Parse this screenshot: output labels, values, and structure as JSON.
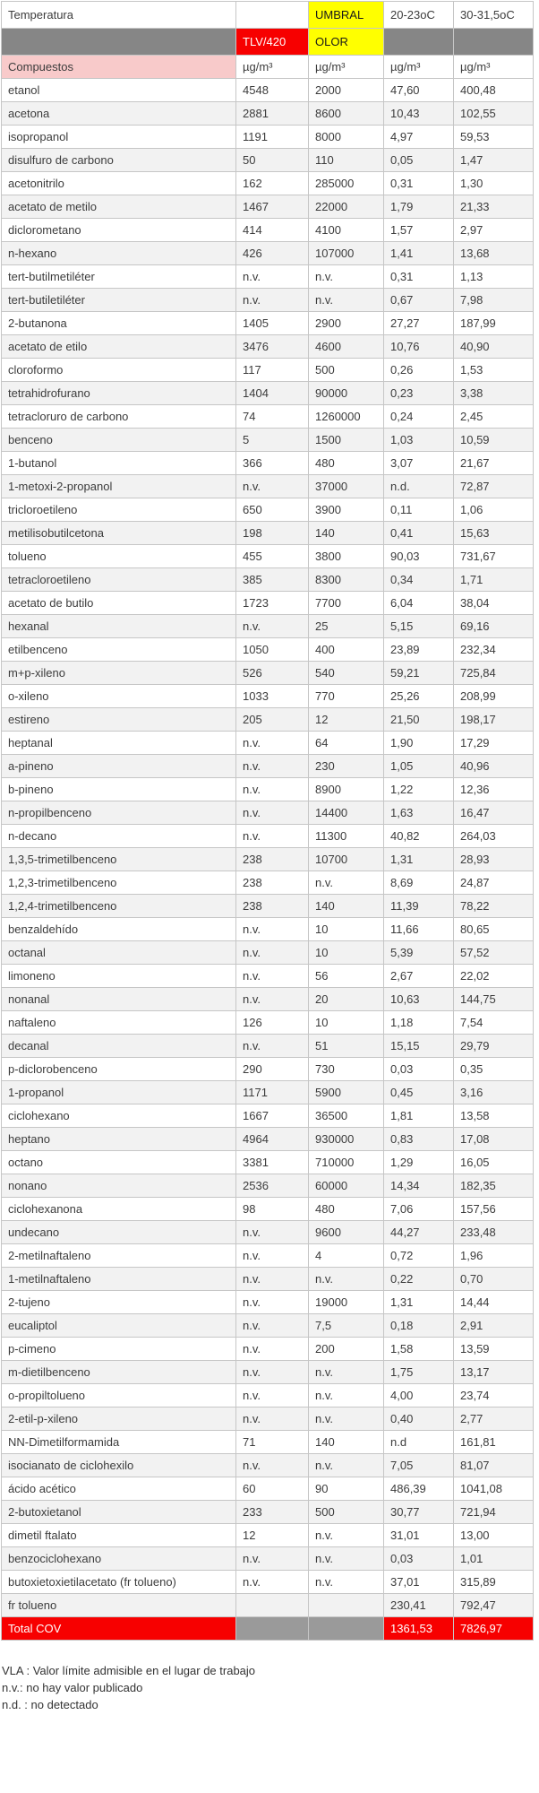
{
  "header": {
    "temperatura": "Temperatura",
    "umbral": "UMBRAL",
    "tlv": "TLV/420",
    "olor": "OLOR",
    "temp_range_low": "20-23oC",
    "temp_range_high": "30-31,5oC",
    "compuestos": "Compuestos",
    "unit": "µg/m³"
  },
  "columns": [
    "compuesto",
    "TLV/420 µg/m³",
    "UMBRAL OLOR µg/m³",
    "20-23oC µg/m³",
    "30-31,5oC µg/m³"
  ],
  "rows": [
    [
      "etanol",
      "4548",
      "2000",
      "47,60",
      "400,48"
    ],
    [
      "acetona",
      "2881",
      "8600",
      "10,43",
      "102,55"
    ],
    [
      "isopropanol",
      "1191",
      "8000",
      "4,97",
      "59,53"
    ],
    [
      "disulfuro de carbono",
      "50",
      "110",
      "0,05",
      "1,47"
    ],
    [
      "acetonitrilo",
      "162",
      "285000",
      "0,31",
      "1,30"
    ],
    [
      "acetato de metilo",
      "1467",
      "22000",
      "1,79",
      "21,33"
    ],
    [
      "diclorometano",
      "414",
      "4100",
      "1,57",
      "2,97"
    ],
    [
      "n-hexano",
      "426",
      "107000",
      "1,41",
      "13,68"
    ],
    [
      "tert-butilmetiléter",
      "n.v.",
      "n.v.",
      "0,31",
      "1,13"
    ],
    [
      "tert-butiletiléter",
      "n.v.",
      "n.v.",
      "0,67",
      "7,98"
    ],
    [
      "2-butanona",
      "1405",
      "2900",
      "27,27",
      "187,99"
    ],
    [
      "acetato de etilo",
      "3476",
      "4600",
      "10,76",
      "40,90"
    ],
    [
      "cloroformo",
      "117",
      "500",
      "0,26",
      "1,53"
    ],
    [
      "tetrahidrofurano",
      "1404",
      "90000",
      "0,23",
      "3,38"
    ],
    [
      "tetracloruro de carbono",
      "74",
      "1260000",
      "0,24",
      "2,45"
    ],
    [
      "benceno",
      "5",
      "1500",
      "1,03",
      "10,59"
    ],
    [
      "1-butanol",
      "366",
      "480",
      "3,07",
      "21,67"
    ],
    [
      "1-metoxi-2-propanol",
      "n.v.",
      "37000",
      "n.d.",
      "72,87"
    ],
    [
      "tricloroetileno",
      "650",
      "3900",
      "0,11",
      "1,06"
    ],
    [
      "metilisobutilcetona",
      "198",
      "140",
      "0,41",
      "15,63"
    ],
    [
      "tolueno",
      "455",
      "3800",
      "90,03",
      "731,67"
    ],
    [
      "tetracloroetileno",
      "385",
      "8300",
      "0,34",
      "1,71"
    ],
    [
      "acetato de butilo",
      "1723",
      "7700",
      "6,04",
      "38,04"
    ],
    [
      "hexanal",
      "n.v.",
      "25",
      "5,15",
      "69,16"
    ],
    [
      "etilbenceno",
      "1050",
      "400",
      "23,89",
      "232,34"
    ],
    [
      "m+p-xileno",
      "526",
      "540",
      "59,21",
      "725,84"
    ],
    [
      "o-xileno",
      "1033",
      "770",
      "25,26",
      "208,99"
    ],
    [
      "estireno",
      "205",
      "12",
      "21,50",
      "198,17"
    ],
    [
      "heptanal",
      "n.v.",
      "64",
      "1,90",
      "17,29"
    ],
    [
      "a-pineno",
      "n.v.",
      "230",
      "1,05",
      "40,96"
    ],
    [
      "b-pineno",
      "n.v.",
      "8900",
      "1,22",
      "12,36"
    ],
    [
      "n-propilbenceno",
      "n.v.",
      "14400",
      "1,63",
      "16,47"
    ],
    [
      "n-decano",
      "n.v.",
      "11300",
      "40,82",
      "264,03"
    ],
    [
      "1,3,5-trimetilbenceno",
      "238",
      "10700",
      "1,31",
      "28,93"
    ],
    [
      "1,2,3-trimetilbenceno",
      "238",
      "n.v.",
      "8,69",
      "24,87"
    ],
    [
      "1,2,4-trimetilbenceno",
      "238",
      "140",
      "11,39",
      "78,22"
    ],
    [
      "benzaldehído",
      "n.v.",
      "10",
      "11,66",
      "80,65"
    ],
    [
      "octanal",
      "n.v.",
      "10",
      "5,39",
      "57,52"
    ],
    [
      "limoneno",
      "n.v.",
      "56",
      "2,67",
      "22,02"
    ],
    [
      "nonanal",
      "n.v.",
      "20",
      "10,63",
      "144,75"
    ],
    [
      "naftaleno",
      "126",
      "10",
      "1,18",
      "7,54"
    ],
    [
      "decanal",
      "n.v.",
      "51",
      "15,15",
      "29,79"
    ],
    [
      "p-diclorobenceno",
      "290",
      "730",
      "0,03",
      "0,35"
    ],
    [
      "1-propanol",
      "1171",
      "5900",
      "0,45",
      "3,16"
    ],
    [
      "ciclohexano",
      "1667",
      "36500",
      "1,81",
      "13,58"
    ],
    [
      "heptano",
      "4964",
      "930000",
      "0,83",
      "17,08"
    ],
    [
      "octano",
      "3381",
      "710000",
      "1,29",
      "16,05"
    ],
    [
      "nonano",
      "2536",
      "60000",
      "14,34",
      "182,35"
    ],
    [
      "ciclohexanona",
      "98",
      "480",
      "7,06",
      "157,56"
    ],
    [
      "undecano",
      "n.v.",
      "9600",
      "44,27",
      "233,48"
    ],
    [
      "2-metilnaftaleno",
      "n.v.",
      "4",
      "0,72",
      "1,96"
    ],
    [
      "1-metilnaftaleno",
      "n.v.",
      "n.v.",
      "0,22",
      "0,70"
    ],
    [
      "2-tujeno",
      "n.v.",
      "19000",
      "1,31",
      "14,44"
    ],
    [
      "eucaliptol",
      "n.v.",
      "7,5",
      "0,18",
      "2,91"
    ],
    [
      "p-cimeno",
      "n.v.",
      "200",
      "1,58",
      "13,59"
    ],
    [
      "m-dietilbenceno",
      "n.v.",
      "n.v.",
      "1,75",
      "13,17"
    ],
    [
      "o-propiltolueno",
      "n.v.",
      "n.v.",
      "4,00",
      "23,74"
    ],
    [
      "2-etil-p-xileno",
      "n.v.",
      "n.v.",
      "0,40",
      "2,77"
    ],
    [
      "NN-Dimetilformamida",
      "71",
      "140",
      "n.d",
      "161,81"
    ],
    [
      "isocianato de ciclohexilo",
      "n.v.",
      "n.v.",
      "7,05",
      "81,07"
    ],
    [
      "ácido acético",
      "60",
      "90",
      "486,39",
      "1041,08"
    ],
    [
      "2-butoxietanol",
      "233",
      "500",
      "30,77",
      "721,94"
    ],
    [
      "dimetil ftalato",
      "12",
      "n.v.",
      "31,01",
      "13,00"
    ],
    [
      "benzociclohexano",
      "n.v.",
      "n.v.",
      "0,03",
      "1,01"
    ],
    [
      "butoxietoxietilacetato (fr tolueno)",
      "n.v.",
      "n.v.",
      "37,01",
      "315,89"
    ],
    [
      "fr tolueno",
      "",
      "",
      "230,41",
      "792,47"
    ]
  ],
  "total": {
    "label": "Total COV",
    "value_20_23": "1361,53",
    "value_30_31": "7826,97"
  },
  "footnotes": [
    "VLA : Valor límite admisible en el lugar de trabajo",
    "n.v.: no hay valor publicado",
    "n.d. : no detectado"
  ],
  "colors": {
    "red": "#f70000",
    "yellow": "#ffff00",
    "header_gray": "#868686",
    "total_gray": "#9a9a9a",
    "pink": "#f8caca",
    "alt_row": "#f2f2f2",
    "border": "#c6c6c6",
    "text": "#3c3c3c"
  }
}
